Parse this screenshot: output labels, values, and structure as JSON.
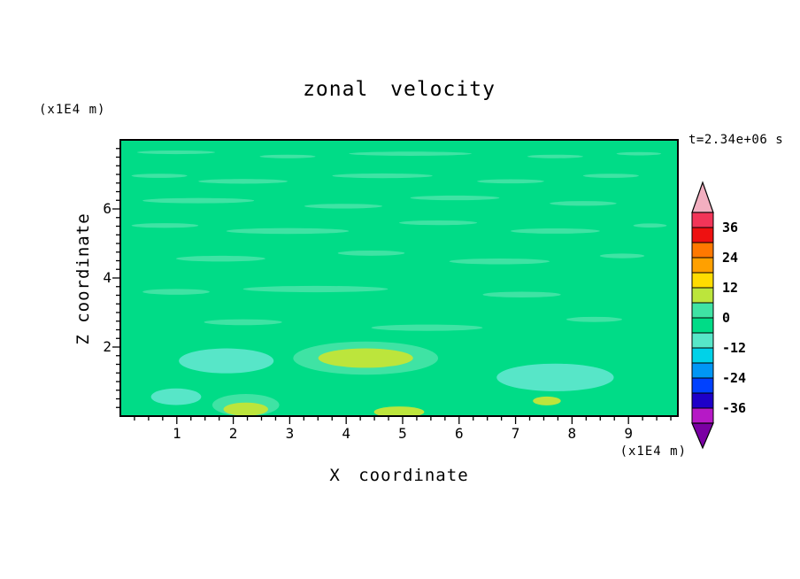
{
  "title": "zonal velocity",
  "timestamp": "t=2.34e+06 s",
  "axes": {
    "x_label": "X coordinate",
    "x_unit": "(x1E4 m)",
    "y_label": "Z coordinate",
    "y_unit": "(x1E4 m)",
    "x_ticks": [
      "1",
      "2",
      "3",
      "4",
      "5",
      "6",
      "7",
      "8",
      "9"
    ],
    "y_ticks": [
      "2",
      "4",
      "6"
    ],
    "x_range": [
      0,
      9.875
    ],
    "y_range": [
      0,
      8
    ]
  },
  "colorbar": {
    "tick_labels": [
      "36",
      "24",
      "12",
      "0",
      "-12",
      "-24",
      "-36"
    ],
    "cells_top_to_bottom": [
      "#F23558",
      "#EE1111",
      "#FF7800",
      "#FFA000",
      "#FFDC00",
      "#BCE53C",
      "#3FE3A4",
      "#00DC87",
      "#57E6C8",
      "#00D2E8",
      "#0096F5",
      "#0041FF",
      "#1E00C8",
      "#B619C6"
    ],
    "top_arrow_color": "#F2AFC0",
    "bottom_arrow_color": "#7A00A3"
  },
  "chart_data": {
    "type": "heatmap",
    "title": "zonal velocity",
    "xlabel": "X coordinate (x1E4 m)",
    "ylabel": "Z coordinate (x1E4 m)",
    "xlim": [
      0,
      9.875
    ],
    "ylim": [
      0,
      8
    ],
    "time_annotation": "t=2.34e+06 s",
    "contour_interval": 6,
    "levels": [
      -42,
      -36,
      -30,
      -24,
      -18,
      -12,
      -6,
      0,
      6,
      12,
      18,
      24,
      30,
      36,
      42
    ],
    "legend_position": "right-colorbar",
    "grid": false,
    "field_summary": "Zonal velocity is near zero (-6..0 band) over almost the whole domain, with thin horizontal 0..6 streaks throughout, pale cyan -12..-6 patches near the bottom around x=1-2.5 and x=7-8.7, and yellow-green 6..12 patches near the bottom around x=3.5-5.2, x=2-2.5 and x=4.6-5.3.",
    "background": {
      "value_band": [
        -6,
        0
      ],
      "color": "#00DC87"
    },
    "streak_band": {
      "value_band": [
        0,
        6
      ],
      "color": "#3FE3A4"
    },
    "streaks": [
      [
        0.1,
        0.045,
        0.14,
        0.013
      ],
      [
        0.3,
        0.06,
        0.1,
        0.013
      ],
      [
        0.52,
        0.05,
        0.22,
        0.015
      ],
      [
        0.78,
        0.06,
        0.1,
        0.013
      ],
      [
        0.93,
        0.05,
        0.08,
        0.012
      ],
      [
        0.07,
        0.13,
        0.1,
        0.015
      ],
      [
        0.22,
        0.15,
        0.16,
        0.017
      ],
      [
        0.47,
        0.13,
        0.18,
        0.017
      ],
      [
        0.7,
        0.15,
        0.12,
        0.015
      ],
      [
        0.88,
        0.13,
        0.1,
        0.015
      ],
      [
        0.14,
        0.22,
        0.2,
        0.019
      ],
      [
        0.4,
        0.24,
        0.14,
        0.017
      ],
      [
        0.6,
        0.21,
        0.16,
        0.017
      ],
      [
        0.83,
        0.23,
        0.12,
        0.017
      ],
      [
        0.08,
        0.31,
        0.12,
        0.017
      ],
      [
        0.3,
        0.33,
        0.22,
        0.021
      ],
      [
        0.57,
        0.3,
        0.14,
        0.017
      ],
      [
        0.78,
        0.33,
        0.16,
        0.019
      ],
      [
        0.95,
        0.31,
        0.06,
        0.015
      ],
      [
        0.18,
        0.43,
        0.16,
        0.021
      ],
      [
        0.45,
        0.41,
        0.12,
        0.019
      ],
      [
        0.68,
        0.44,
        0.18,
        0.021
      ],
      [
        0.9,
        0.42,
        0.08,
        0.017
      ],
      [
        0.1,
        0.55,
        0.12,
        0.021
      ],
      [
        0.35,
        0.54,
        0.26,
        0.023
      ],
      [
        0.72,
        0.56,
        0.14,
        0.021
      ],
      [
        0.22,
        0.66,
        0.14,
        0.021
      ],
      [
        0.55,
        0.68,
        0.2,
        0.023
      ],
      [
        0.85,
        0.65,
        0.1,
        0.019
      ]
    ],
    "patches": [
      {
        "color": "#3FE3A4",
        "x": 0.44,
        "y": 0.79,
        "rx": 0.13,
        "ry": 0.06,
        "band": [
          0,
          6
        ]
      },
      {
        "color": "#57E6C8",
        "x": 0.19,
        "y": 0.8,
        "rx": 0.085,
        "ry": 0.045,
        "band": [
          -12,
          -6
        ]
      },
      {
        "color": "#57E6C8",
        "x": 0.78,
        "y": 0.86,
        "rx": 0.105,
        "ry": 0.05,
        "band": [
          -12,
          -6
        ]
      },
      {
        "color": "#57E6C8",
        "x": 0.1,
        "y": 0.93,
        "rx": 0.045,
        "ry": 0.03,
        "band": [
          -12,
          -6
        ]
      },
      {
        "color": "#BCE53C",
        "x": 0.44,
        "y": 0.79,
        "rx": 0.085,
        "ry": 0.035,
        "band": [
          6,
          12
        ]
      },
      {
        "color": "#3FE3A4",
        "x": 0.225,
        "y": 0.96,
        "rx": 0.06,
        "ry": 0.04,
        "band": [
          0,
          6
        ]
      },
      {
        "color": "#BCE53C",
        "x": 0.225,
        "y": 0.975,
        "rx": 0.04,
        "ry": 0.024,
        "band": [
          6,
          12
        ]
      },
      {
        "color": "#BCE53C",
        "x": 0.5,
        "y": 0.985,
        "rx": 0.045,
        "ry": 0.02,
        "band": [
          6,
          12
        ]
      },
      {
        "color": "#BCE53C",
        "x": 0.765,
        "y": 0.945,
        "rx": 0.025,
        "ry": 0.016,
        "band": [
          6,
          12
        ]
      }
    ]
  }
}
